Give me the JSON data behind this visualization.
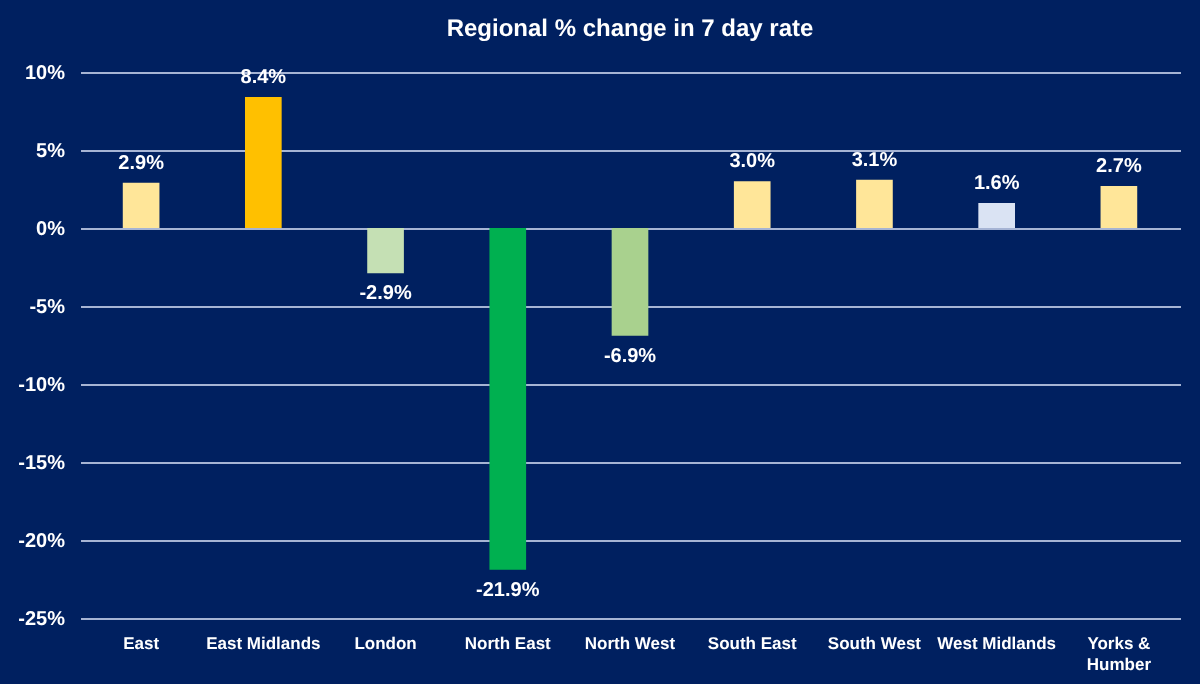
{
  "chart_data": {
    "type": "bar",
    "title": "Regional % change in 7 day rate",
    "categories": [
      "East",
      "East Midlands",
      "London",
      "North East",
      "North West",
      "South East",
      "South West",
      "West Midlands",
      "Yorks & Humber"
    ],
    "values": [
      2.9,
      8.4,
      -2.9,
      -21.9,
      -6.9,
      3.0,
      3.1,
      1.6,
      2.7
    ],
    "colors": [
      "#ffe699",
      "#ffc000",
      "#c5e0b4",
      "#00b050",
      "#a9d18e",
      "#ffe699",
      "#ffe699",
      "#dae3f3",
      "#ffe699"
    ],
    "value_labels": [
      "2.9%",
      "8.4%",
      "-2.9%",
      "-21.9%",
      "-6.9%",
      "3.0%",
      "3.1%",
      "1.6%",
      "2.7%"
    ],
    "ylim": [
      -25,
      10
    ],
    "yticks": [
      {
        "value": -25,
        "label": "-25%"
      },
      {
        "value": -20,
        "label": "-20%"
      },
      {
        "value": -15,
        "label": "-15%"
      },
      {
        "value": -10,
        "label": "-10%"
      },
      {
        "value": -5,
        "label": "-5%"
      },
      {
        "value": 0,
        "label": "0%"
      },
      {
        "value": 5,
        "label": "5%"
      },
      {
        "value": 10,
        "label": "10%"
      }
    ],
    "grid": "y"
  }
}
